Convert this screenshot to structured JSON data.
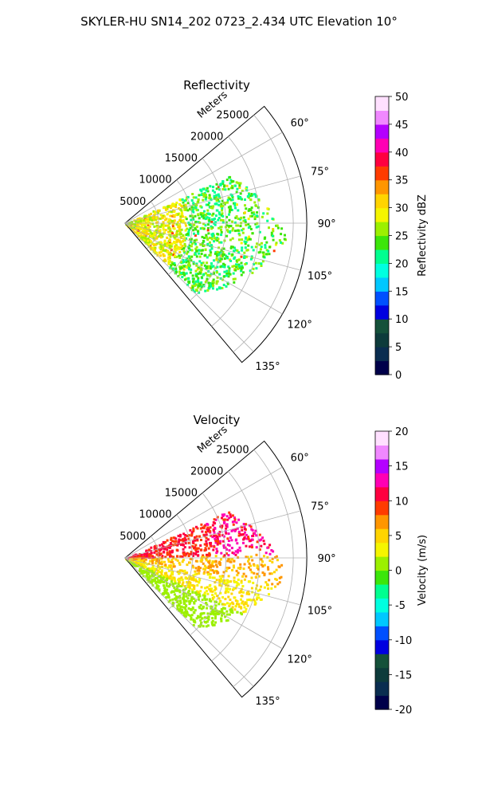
{
  "suptitle": "SKYLER-HU  SN14_202  0723_2.434 UTC Elevation 10°",
  "chart_data": [
    {
      "type": "polar-sector-ppi",
      "title": "Reflectivity",
      "radial_label": "Meters",
      "radial_ticks": [
        5000,
        10000,
        15000,
        20000,
        25000
      ],
      "angle_ticks": [
        60,
        75,
        90,
        105,
        120,
        135
      ],
      "angle_range_deg": [
        50,
        140
      ],
      "range_max_m": 27000,
      "grid": true,
      "colorbar": {
        "label": "Reflectivity dBZ",
        "min": 0,
        "max": 50,
        "ticks": [
          0,
          5,
          10,
          15,
          20,
          25,
          30,
          35,
          40,
          45,
          50
        ],
        "colors": [
          "#00004a",
          "#0a2d50",
          "#0d3b3b",
          "#15513a",
          "#0000e0",
          "#0050ff",
          "#00c8ff",
          "#00ffe0",
          "#00ff90",
          "#3ce60a",
          "#9cf000",
          "#f5f500",
          "#ffd400",
          "#ff9600",
          "#ff3c00",
          "#ff0040",
          "#ff00b4",
          "#b400ff",
          "#f088ff",
          "#ffe0ff"
        ]
      },
      "echo_range_m": [
        0,
        24000
      ],
      "echo_colors": [
        "#00ff90",
        "#3ce60a",
        "#9cf000",
        "#f5f500",
        "#ffd400",
        "#ff3c00"
      ]
    },
    {
      "type": "polar-sector-ppi",
      "title": "Velocity",
      "radial_label": "Meters",
      "radial_ticks": [
        5000,
        10000,
        15000,
        20000,
        25000
      ],
      "angle_ticks": [
        60,
        75,
        90,
        105,
        120,
        135
      ],
      "angle_range_deg": [
        50,
        140
      ],
      "range_max_m": 27000,
      "grid": true,
      "colorbar": {
        "label": "Velocity (m/s)",
        "min": -20,
        "max": 20,
        "ticks": [
          -20,
          -15,
          -10,
          -5,
          0,
          5,
          10,
          15,
          20
        ],
        "colors": [
          "#00004a",
          "#0a2d50",
          "#0d3b3b",
          "#15513a",
          "#0000e0",
          "#0050ff",
          "#00c8ff",
          "#00ffe0",
          "#00ff90",
          "#3ce60a",
          "#9cf000",
          "#f5f500",
          "#ffd400",
          "#ff9600",
          "#ff3c00",
          "#ff0040",
          "#ff00b4",
          "#b400ff",
          "#f088ff",
          "#ffe0ff"
        ]
      },
      "echo_range_m": [
        0,
        24000
      ],
      "echo_colors": [
        "#ff0040",
        "#ff3c00",
        "#ff9600",
        "#ffd400",
        "#f5f500",
        "#9cf000",
        "#ff00b4"
      ]
    }
  ]
}
